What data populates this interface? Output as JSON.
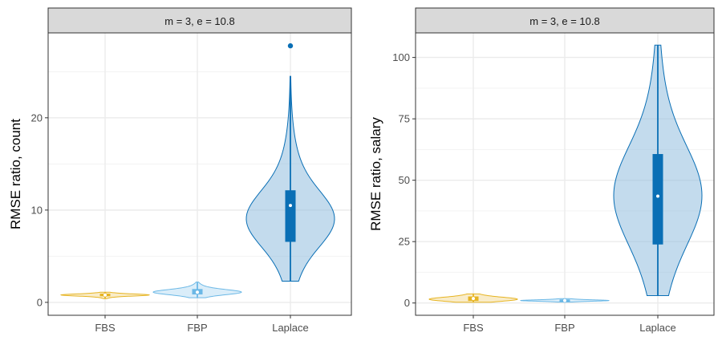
{
  "colors": {
    "FBS": "#E6B422",
    "FBP": "#6BB8E6",
    "Laplace": "#0A6FB5",
    "strip_fill": "#D9D9D9",
    "grid": "#EBEBEB",
    "panel_border": "#333333"
  },
  "chart_data": [
    {
      "type": "violin",
      "strip_title": "m = 3, e = 10.8",
      "xlabel": "",
      "ylabel": "RMSE ratio, count",
      "ylim": [
        -1.4,
        29.2
      ],
      "yticks": [
        0,
        10,
        20
      ],
      "ytick_labels": [
        "0",
        "10",
        "20"
      ],
      "categories": [
        "FBS",
        "FBP",
        "Laplace"
      ],
      "grid": true,
      "series": [
        {
          "category": "FBS",
          "min": 0.4,
          "q1": 0.7,
          "median": 0.8,
          "q3": 0.9,
          "max": 1.1,
          "mean": 0.8,
          "outliers": []
        },
        {
          "category": "FBP",
          "min": 0.5,
          "q1": 0.9,
          "median": 1.1,
          "q3": 1.4,
          "max": 2.2,
          "mean": 1.1,
          "outliers": []
        },
        {
          "category": "Laplace",
          "min": 2.3,
          "q1": 6.6,
          "median": 9.0,
          "q3": 12.1,
          "max": 24.5,
          "mean": 10.5,
          "outliers": [
            27.8
          ]
        }
      ]
    },
    {
      "type": "violin",
      "strip_title": "m = 3, e = 10.8",
      "xlabel": "",
      "ylabel": "RMSE ratio, salary",
      "ylim": [
        -5,
        110
      ],
      "yticks": [
        0,
        25,
        50,
        75,
        100
      ],
      "ytick_labels": [
        "0",
        "25",
        "50",
        "75",
        "100"
      ],
      "categories": [
        "FBS",
        "FBP",
        "Laplace"
      ],
      "grid": true,
      "series": [
        {
          "category": "FBS",
          "min": 0.3,
          "q1": 1.0,
          "median": 1.5,
          "q3": 2.5,
          "max": 3.7,
          "mean": 1.8,
          "outliers": []
        },
        {
          "category": "FBP",
          "min": 0.4,
          "q1": 0.8,
          "median": 1.0,
          "q3": 1.3,
          "max": 1.8,
          "mean": 1.0,
          "outliers": []
        },
        {
          "category": "Laplace",
          "min": 3.0,
          "q1": 24.0,
          "median": 44.0,
          "q3": 60.5,
          "max": 105.0,
          "mean": 43.5,
          "outliers": []
        }
      ]
    }
  ]
}
